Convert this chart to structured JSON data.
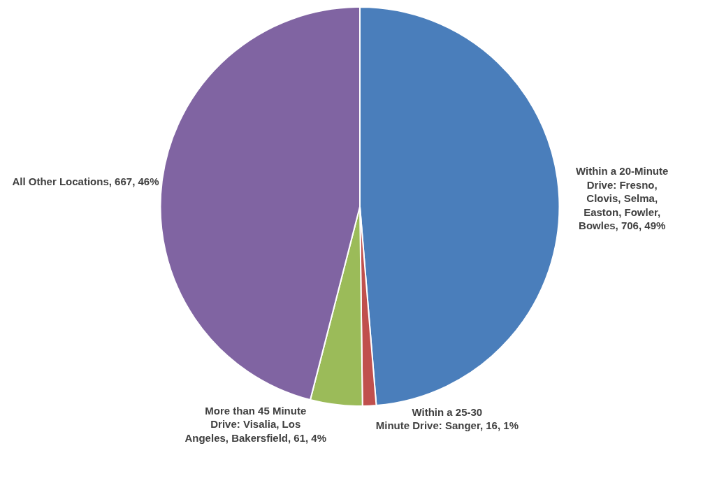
{
  "chart_data": {
    "type": "pie",
    "categories": [
      "Within a 20-Minute Drive: Fresno, Clovis, Selma, Easton, Fowler, Bowles",
      "Within a 25-30 Minute Drive: Sanger",
      "More than 45 Minute Drive: Visalia, Los Angeles, Bakersfield",
      "All Other Locations"
    ],
    "values": [
      706,
      16,
      61,
      667
    ],
    "value_labels": [
      "706, 49%",
      "16, 1%",
      "61, 4%",
      "667, 46%"
    ],
    "colors": [
      "#4a7ebb",
      "#c0504d",
      "#9bbb59",
      "#8064a2"
    ]
  }
}
